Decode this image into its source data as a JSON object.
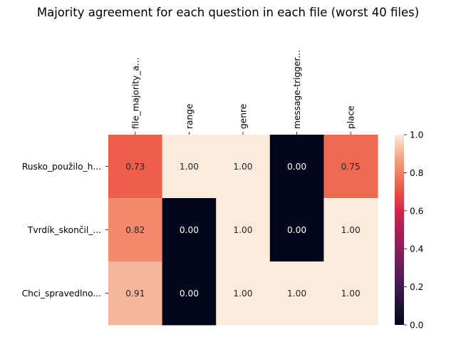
{
  "chart_data": {
    "type": "heatmap",
    "title": "Majority agreement for each question in each file (worst 40 files)",
    "columns": [
      "file_majority_a...",
      "range",
      "genre",
      "message-trigger...",
      "place"
    ],
    "rows": [
      "Rusko_použilo_h...",
      "Tvrdík_skončil_...",
      "Chci_spravedlno..."
    ],
    "values": [
      [
        0.73,
        1.0,
        1.0,
        0.0,
        0.75
      ],
      [
        0.82,
        0.0,
        1.0,
        0.0,
        1.0
      ],
      [
        0.91,
        0.0,
        1.0,
        1.0,
        1.0
      ]
    ],
    "value_labels": [
      [
        "0.73",
        "1.00",
        "1.00",
        "0.00",
        "0.75"
      ],
      [
        "0.82",
        "0.00",
        "1.00",
        "0.00",
        "1.00"
      ],
      [
        "0.91",
        "0.00",
        "1.00",
        "1.00",
        "1.00"
      ]
    ],
    "colormap": "rocket",
    "vmin": 0.0,
    "vmax": 1.0,
    "colorbar_ticks": [
      "0.0",
      "0.2",
      "0.4",
      "0.6",
      "0.8",
      "1.0"
    ],
    "grid": false,
    "legend": "colorbar-right"
  }
}
